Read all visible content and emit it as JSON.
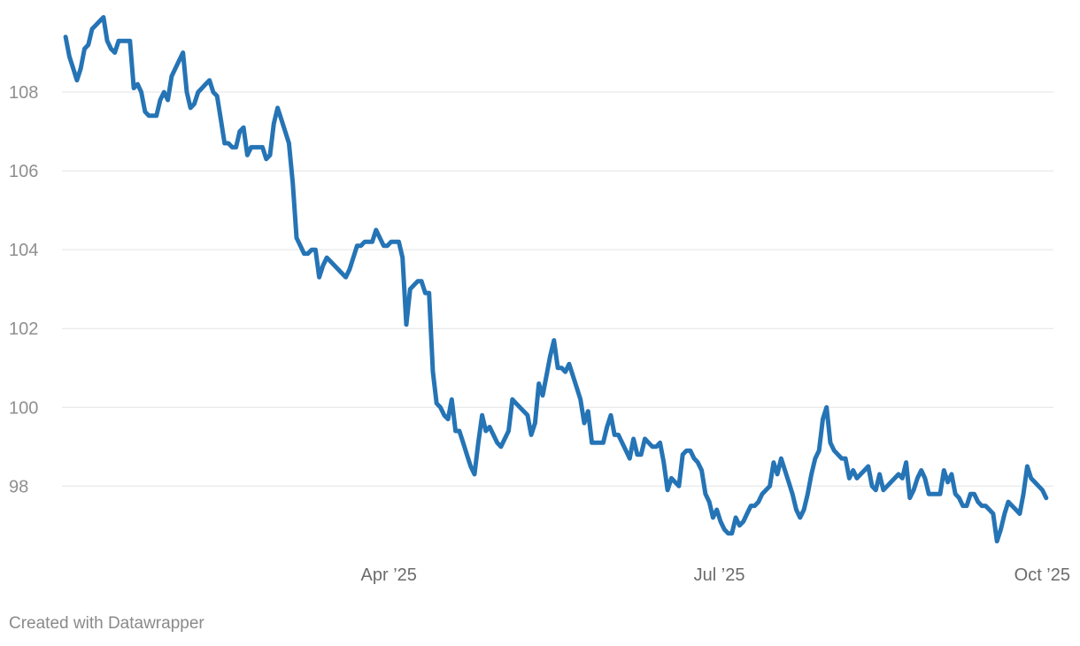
{
  "chart_data": {
    "type": "line",
    "title": "",
    "xlabel": "",
    "ylabel": "",
    "series_color": "#2574b5",
    "grid": true,
    "x_start": "2025-01-02",
    "x_end": "2025-09-29",
    "xlim": [
      "2025-01-01",
      "2025-10-01"
    ],
    "ylim": [
      96.3,
      110.0
    ],
    "y_ticks": [
      98,
      100,
      102,
      104,
      106,
      108
    ],
    "x_ticks": [
      {
        "date": "2025-04-01",
        "label": "Apr ’25"
      },
      {
        "date": "2025-07-01",
        "label": "Jul ’25"
      },
      {
        "date": "2025-10-01",
        "label": "Oct ’25"
      }
    ],
    "values": [
      109.4,
      108.9,
      108.6,
      108.3,
      108.6,
      109.1,
      109.2,
      109.6,
      109.7,
      109.8,
      109.9,
      109.3,
      109.1,
      109.0,
      109.3,
      109.3,
      109.3,
      109.3,
      108.1,
      108.2,
      108.0,
      107.5,
      107.4,
      107.4,
      107.4,
      107.8,
      108.0,
      107.8,
      108.4,
      108.6,
      108.8,
      109.0,
      108.0,
      107.6,
      107.7,
      108.0,
      108.1,
      108.2,
      108.3,
      108.0,
      107.9,
      107.3,
      106.7,
      106.7,
      106.6,
      106.6,
      107.0,
      107.1,
      106.4,
      106.6,
      106.6,
      106.6,
      106.6,
      106.3,
      106.4,
      107.2,
      107.6,
      107.3,
      107.0,
      106.7,
      105.7,
      104.3,
      104.1,
      103.9,
      103.9,
      104.0,
      104.0,
      103.3,
      103.6,
      103.8,
      103.7,
      103.6,
      103.5,
      103.4,
      103.3,
      103.5,
      103.8,
      104.1,
      104.1,
      104.2,
      104.2,
      104.2,
      104.5,
      104.3,
      104.1,
      104.1,
      104.2,
      104.2,
      104.2,
      103.8,
      102.1,
      103.0,
      103.1,
      103.2,
      103.2,
      102.9,
      102.9,
      100.9,
      100.1,
      100.0,
      99.8,
      99.7,
      100.2,
      99.4,
      99.4,
      99.1,
      98.8,
      98.5,
      98.3,
      99.1,
      99.8,
      99.4,
      99.5,
      99.3,
      99.1,
      99.0,
      99.2,
      99.4,
      100.2,
      100.1,
      100.0,
      99.9,
      99.8,
      99.3,
      99.6,
      100.6,
      100.3,
      100.8,
      101.3,
      101.7,
      101.0,
      101.0,
      100.9,
      101.1,
      100.8,
      100.5,
      100.2,
      99.6,
      99.9,
      99.1,
      99.1,
      99.1,
      99.1,
      99.5,
      99.8,
      99.3,
      99.3,
      99.1,
      98.9,
      98.7,
      99.2,
      98.8,
      98.8,
      99.2,
      99.1,
      99.0,
      99.0,
      99.1,
      98.6,
      97.9,
      98.2,
      98.1,
      98.0,
      98.8,
      98.9,
      98.9,
      98.7,
      98.6,
      98.4,
      97.8,
      97.6,
      97.2,
      97.4,
      97.1,
      96.9,
      96.8,
      96.8,
      97.2,
      97.0,
      97.1,
      97.3,
      97.5,
      97.5,
      97.6,
      97.8,
      97.9,
      98.0,
      98.6,
      98.3,
      98.7,
      98.4,
      98.1,
      97.8,
      97.4,
      97.2,
      97.4,
      97.8,
      98.3,
      98.7,
      98.9,
      99.7,
      100.0,
      99.1,
      98.9,
      98.8,
      98.7,
      98.7,
      98.2,
      98.4,
      98.2,
      98.3,
      98.4,
      98.5,
      98.0,
      97.9,
      98.3,
      97.9,
      98.0,
      98.1,
      98.2,
      98.3,
      98.2,
      98.6,
      97.7,
      97.9,
      98.2,
      98.4,
      98.2,
      97.8,
      97.8,
      97.8,
      97.8,
      98.4,
      98.1,
      98.3,
      97.8,
      97.7,
      97.5,
      97.5,
      97.8,
      97.8,
      97.6,
      97.5,
      97.5,
      97.4,
      97.3,
      96.6,
      96.9,
      97.3,
      97.6,
      97.5,
      97.4,
      97.3,
      97.8,
      98.5,
      98.2,
      98.1,
      98.0,
      97.9,
      97.7
    ]
  },
  "footer": {
    "credit": "Created with Datawrapper"
  }
}
